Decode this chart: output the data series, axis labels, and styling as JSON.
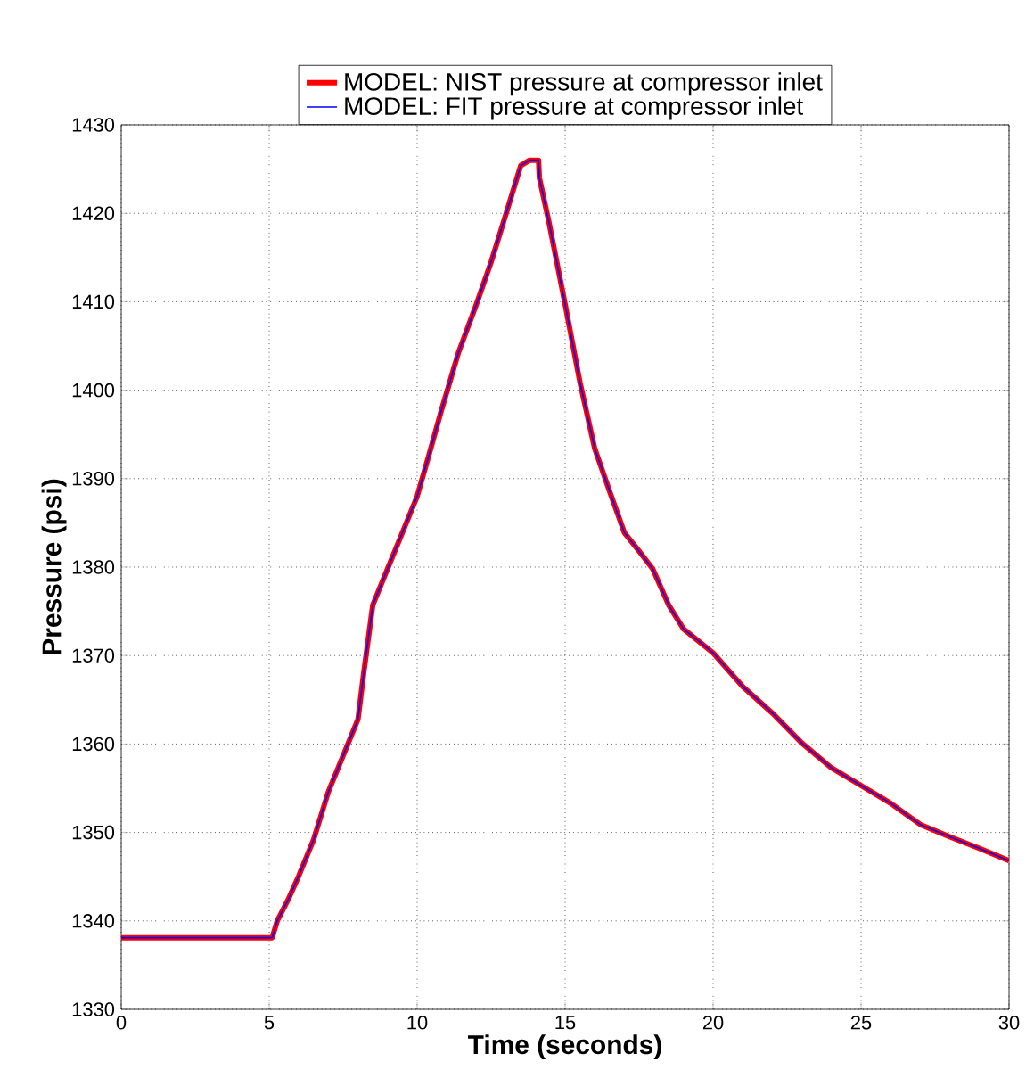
{
  "chart_data": {
    "type": "line",
    "xlabel": "Time (seconds)",
    "ylabel": "Pressure (psi)",
    "x": [
      0,
      5.1,
      5.27,
      5.64,
      6.0,
      6.5,
      7.0,
      7.5,
      8.0,
      8.2,
      8.5,
      9.0,
      9.5,
      10.0,
      10.4,
      10.8,
      11.1,
      11.4,
      12.0,
      12.5,
      13.0,
      13.5,
      13.8,
      14.1,
      14.13,
      14.44,
      15.0,
      15.5,
      16.0,
      16.5,
      17.0,
      17.5,
      17.96,
      18.5,
      19.0,
      20.0,
      21.0,
      22.0,
      23.0,
      24.0,
      25.0,
      26.0,
      27.0,
      28.0,
      29.0,
      30.0
    ],
    "series": [
      {
        "name": "MODEL: NIST pressure at compressor inlet",
        "color": "#ff0000",
        "values": [
          1338.1,
          1338.1,
          1340,
          1342.4,
          1345.1,
          1349.2,
          1354.6,
          1358.7,
          1362.8,
          1368.2,
          1375.7,
          1379.8,
          1383.9,
          1388,
          1392.7,
          1397.5,
          1400.9,
          1404.3,
          1409.7,
          1414.5,
          1419.9,
          1425.4,
          1426,
          1426,
          1424,
          1419.2,
          1409.7,
          1400.9,
          1393.4,
          1388.6,
          1383.9,
          1381.8,
          1379.8,
          1375.7,
          1373,
          1370.3,
          1366.5,
          1363.5,
          1360.1,
          1357.3,
          1355.3,
          1353.3,
          1350.9,
          1349.5,
          1348.2,
          1346.8
        ]
      },
      {
        "name": "MODEL: FIT pressure at compressor inlet",
        "color": "#0000ff",
        "values": [
          1338.1,
          1338.1,
          1340,
          1342.4,
          1345.1,
          1349.2,
          1354.6,
          1358.7,
          1362.8,
          1368.2,
          1375.7,
          1379.8,
          1383.9,
          1388,
          1392.7,
          1397.5,
          1400.9,
          1404.3,
          1409.7,
          1414.5,
          1419.9,
          1425.4,
          1426,
          1426,
          1424,
          1419.2,
          1409.7,
          1400.9,
          1393.4,
          1388.6,
          1383.9,
          1381.8,
          1379.8,
          1375.7,
          1373,
          1370.3,
          1366.5,
          1363.5,
          1360.1,
          1357.3,
          1355.3,
          1353.3,
          1350.9,
          1349.5,
          1348.2,
          1346.8
        ]
      }
    ],
    "xlim": [
      0,
      30
    ],
    "xticks": [
      0,
      5,
      10,
      15,
      20,
      25,
      30
    ],
    "ylim": [
      1330,
      1430
    ],
    "yticks": [
      1330,
      1340,
      1350,
      1360,
      1370,
      1380,
      1390,
      1400,
      1410,
      1420,
      1430
    ],
    "grid": true,
    "legend": "top",
    "marker": "none",
    "line_style": "solid"
  }
}
